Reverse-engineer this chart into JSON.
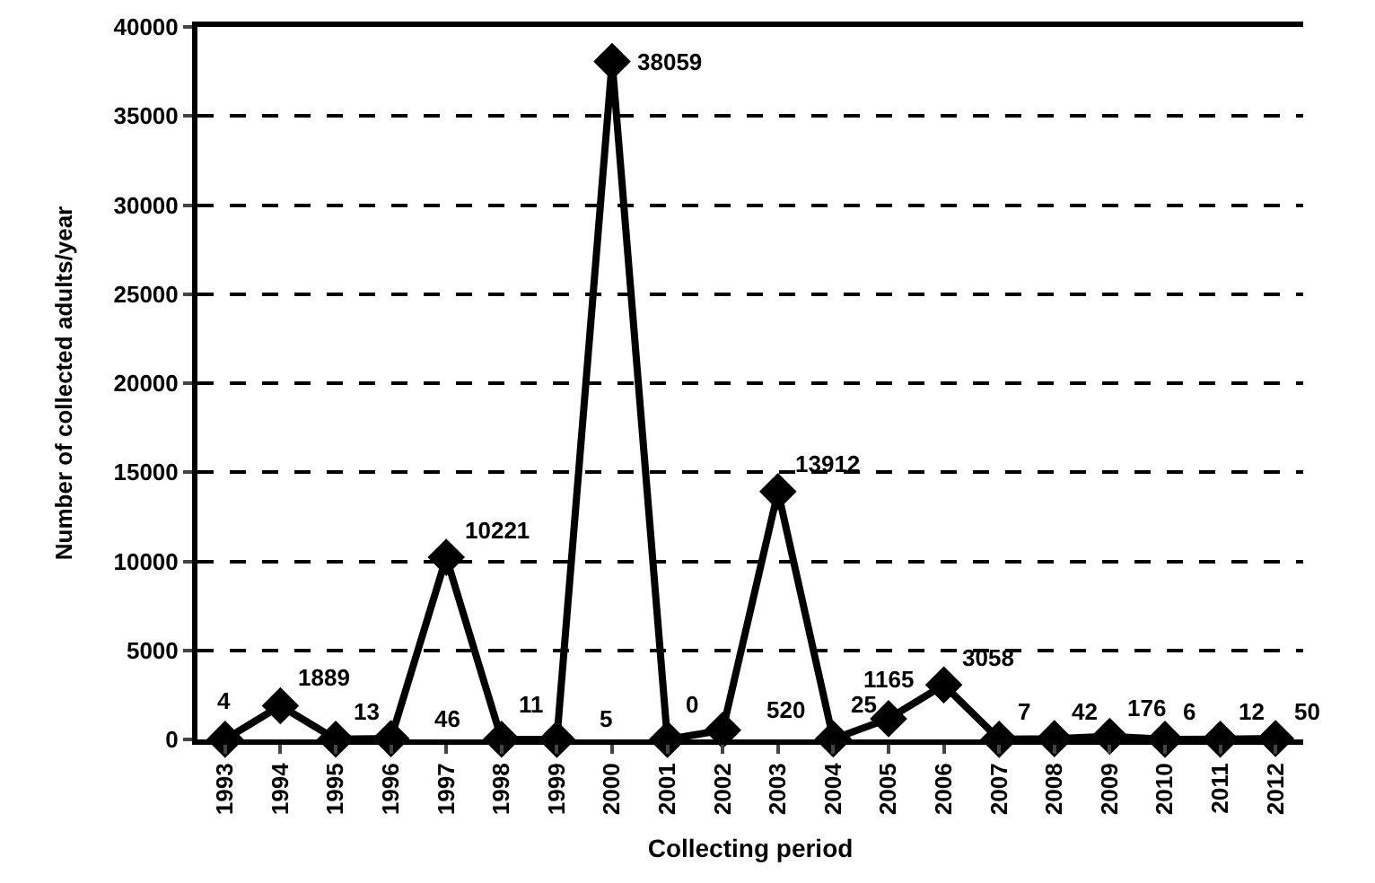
{
  "chart_data": {
    "type": "line",
    "xlabel": "Collecting period",
    "ylabel": "Number of collected adults/year",
    "categories": [
      "1993",
      "1994",
      "1995",
      "1996",
      "1997",
      "1998",
      "1999",
      "2000",
      "2001",
      "2002",
      "2003",
      "2004",
      "2005",
      "2006",
      "2007",
      "2008",
      "2009",
      "2010",
      "2011",
      "2012"
    ],
    "series": [
      {
        "color": "#000000",
        "values": [
          4,
          1889,
          13,
          46,
          10221,
          11,
          5,
          38059,
          0,
          520,
          13912,
          25,
          1165,
          3058,
          7,
          42,
          176,
          6,
          12,
          50
        ]
      }
    ],
    "ylim": [
      0,
      40000
    ],
    "yticks": [
      0,
      5000,
      10000,
      15000,
      20000,
      25000,
      30000,
      35000,
      40000
    ],
    "grid": "y",
    "marker": "diamond",
    "line_style": "solid",
    "data_labels": true
  }
}
